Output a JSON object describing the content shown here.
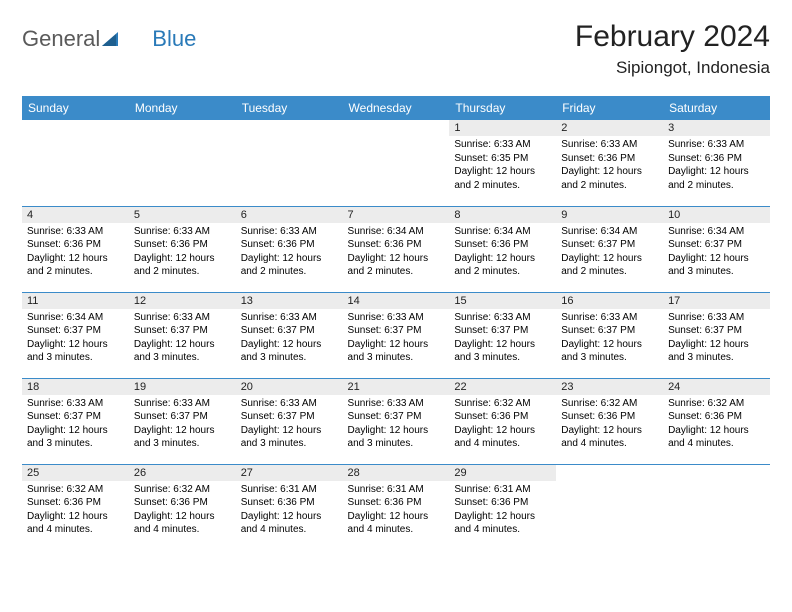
{
  "logo": {
    "text1": "General",
    "text2": "Blue"
  },
  "title": "February 2024",
  "location": "Sipiongot, Indonesia",
  "colors": {
    "header_bg": "#3b8bc9",
    "header_text": "#ffffff",
    "daynum_bg": "#ececec",
    "row_border": "#3b8bc9",
    "logo_gray": "#5a5a5a",
    "logo_blue": "#2a7ab8"
  },
  "weekdays": [
    "Sunday",
    "Monday",
    "Tuesday",
    "Wednesday",
    "Thursday",
    "Friday",
    "Saturday"
  ],
  "weeks": [
    [
      null,
      null,
      null,
      null,
      {
        "d": "1",
        "sr": "6:33 AM",
        "ss": "6:35 PM",
        "dl": "12 hours and 2 minutes."
      },
      {
        "d": "2",
        "sr": "6:33 AM",
        "ss": "6:36 PM",
        "dl": "12 hours and 2 minutes."
      },
      {
        "d": "3",
        "sr": "6:33 AM",
        "ss": "6:36 PM",
        "dl": "12 hours and 2 minutes."
      }
    ],
    [
      {
        "d": "4",
        "sr": "6:33 AM",
        "ss": "6:36 PM",
        "dl": "12 hours and 2 minutes."
      },
      {
        "d": "5",
        "sr": "6:33 AM",
        "ss": "6:36 PM",
        "dl": "12 hours and 2 minutes."
      },
      {
        "d": "6",
        "sr": "6:33 AM",
        "ss": "6:36 PM",
        "dl": "12 hours and 2 minutes."
      },
      {
        "d": "7",
        "sr": "6:34 AM",
        "ss": "6:36 PM",
        "dl": "12 hours and 2 minutes."
      },
      {
        "d": "8",
        "sr": "6:34 AM",
        "ss": "6:36 PM",
        "dl": "12 hours and 2 minutes."
      },
      {
        "d": "9",
        "sr": "6:34 AM",
        "ss": "6:37 PM",
        "dl": "12 hours and 2 minutes."
      },
      {
        "d": "10",
        "sr": "6:34 AM",
        "ss": "6:37 PM",
        "dl": "12 hours and 3 minutes."
      }
    ],
    [
      {
        "d": "11",
        "sr": "6:34 AM",
        "ss": "6:37 PM",
        "dl": "12 hours and 3 minutes."
      },
      {
        "d": "12",
        "sr": "6:33 AM",
        "ss": "6:37 PM",
        "dl": "12 hours and 3 minutes."
      },
      {
        "d": "13",
        "sr": "6:33 AM",
        "ss": "6:37 PM",
        "dl": "12 hours and 3 minutes."
      },
      {
        "d": "14",
        "sr": "6:33 AM",
        "ss": "6:37 PM",
        "dl": "12 hours and 3 minutes."
      },
      {
        "d": "15",
        "sr": "6:33 AM",
        "ss": "6:37 PM",
        "dl": "12 hours and 3 minutes."
      },
      {
        "d": "16",
        "sr": "6:33 AM",
        "ss": "6:37 PM",
        "dl": "12 hours and 3 minutes."
      },
      {
        "d": "17",
        "sr": "6:33 AM",
        "ss": "6:37 PM",
        "dl": "12 hours and 3 minutes."
      }
    ],
    [
      {
        "d": "18",
        "sr": "6:33 AM",
        "ss": "6:37 PM",
        "dl": "12 hours and 3 minutes."
      },
      {
        "d": "19",
        "sr": "6:33 AM",
        "ss": "6:37 PM",
        "dl": "12 hours and 3 minutes."
      },
      {
        "d": "20",
        "sr": "6:33 AM",
        "ss": "6:37 PM",
        "dl": "12 hours and 3 minutes."
      },
      {
        "d": "21",
        "sr": "6:33 AM",
        "ss": "6:37 PM",
        "dl": "12 hours and 3 minutes."
      },
      {
        "d": "22",
        "sr": "6:32 AM",
        "ss": "6:36 PM",
        "dl": "12 hours and 4 minutes."
      },
      {
        "d": "23",
        "sr": "6:32 AM",
        "ss": "6:36 PM",
        "dl": "12 hours and 4 minutes."
      },
      {
        "d": "24",
        "sr": "6:32 AM",
        "ss": "6:36 PM",
        "dl": "12 hours and 4 minutes."
      }
    ],
    [
      {
        "d": "25",
        "sr": "6:32 AM",
        "ss": "6:36 PM",
        "dl": "12 hours and 4 minutes."
      },
      {
        "d": "26",
        "sr": "6:32 AM",
        "ss": "6:36 PM",
        "dl": "12 hours and 4 minutes."
      },
      {
        "d": "27",
        "sr": "6:31 AM",
        "ss": "6:36 PM",
        "dl": "12 hours and 4 minutes."
      },
      {
        "d": "28",
        "sr": "6:31 AM",
        "ss": "6:36 PM",
        "dl": "12 hours and 4 minutes."
      },
      {
        "d": "29",
        "sr": "6:31 AM",
        "ss": "6:36 PM",
        "dl": "12 hours and 4 minutes."
      },
      null,
      null
    ]
  ],
  "labels": {
    "sunrise": "Sunrise:",
    "sunset": "Sunset:",
    "daylight": "Daylight:"
  }
}
